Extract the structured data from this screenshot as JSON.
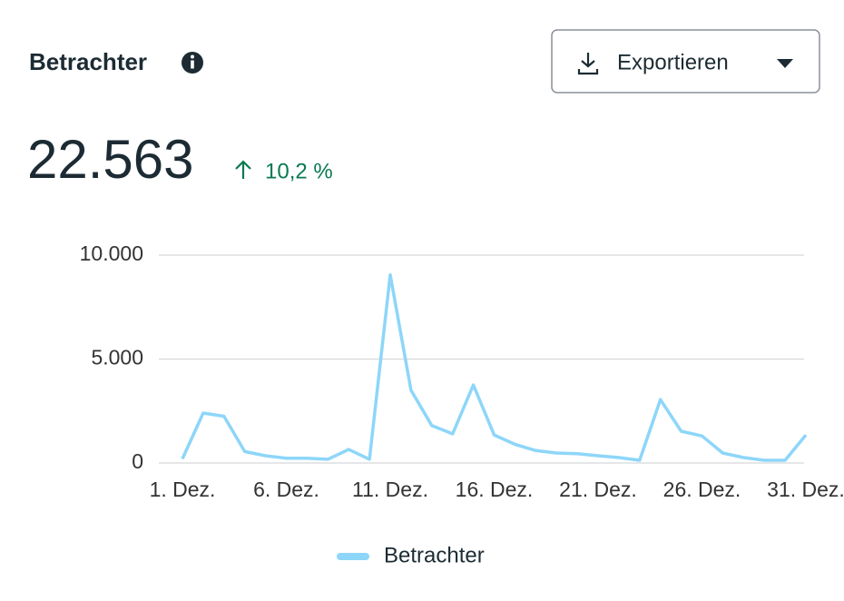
{
  "header": {
    "title": "Betrachter",
    "button": "Exportieren",
    "total": "22.563",
    "change": "10,2 %"
  },
  "chart_data": {
    "type": "line",
    "categories": [
      "1. Dez.",
      null,
      null,
      null,
      null,
      "6. Dez.",
      null,
      null,
      null,
      null,
      "11. Dez.",
      null,
      null,
      null,
      null,
      "16. Dez.",
      null,
      null,
      null,
      null,
      "21. Dez.",
      null,
      null,
      null,
      null,
      "26. Dez.",
      null,
      null,
      null,
      null,
      "31. Dez."
    ],
    "series": [
      {
        "name": "Betrachter",
        "color": "#8dd6f9",
        "values": [
          200,
          2400,
          2250,
          550,
          350,
          230,
          230,
          180,
          650,
          180,
          9050,
          3500,
          1800,
          1400,
          3750,
          1350,
          900,
          600,
          480,
          450,
          350,
          260,
          130,
          3050,
          1530,
          1300,
          480,
          260,
          130,
          130,
          1350
        ]
      }
    ],
    "ylim": [
      0,
      10000
    ],
    "yticks": [
      0,
      {
        "value": 5000,
        "label": "5.000"
      },
      {
        "value": 10000,
        "label": "10.000"
      }
    ],
    "grid": true
  }
}
